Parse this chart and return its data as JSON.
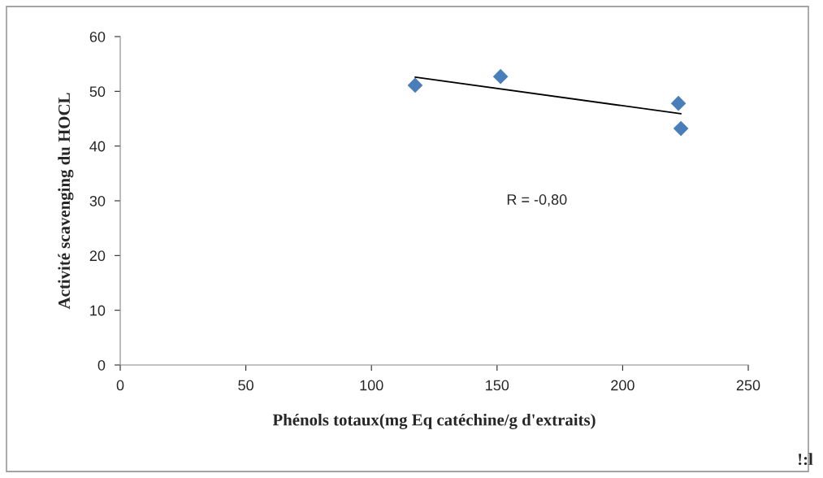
{
  "chart_data": {
    "type": "scatter",
    "xlabel": "Phénols totaux(mg Eq catéchine/g d'extraits)",
    "ylabel": "Activité scavenging du HOCL",
    "xlim": [
      0,
      250
    ],
    "xticks": [
      0,
      50,
      100,
      150,
      200,
      250
    ],
    "ylim": [
      0,
      60
    ],
    "yticks": [
      0,
      10,
      20,
      30,
      40,
      50,
      60
    ],
    "grid": false,
    "legend": false,
    "marker": "diamond",
    "series": [
      {
        "color": "#4a7ebb",
        "x": [
          117.4,
          151.4,
          222.2,
          223.2
        ],
        "values": [
          51.1,
          52.7,
          47.8,
          43.2
        ]
      },
      {
        "type": "line",
        "color": "#000000",
        "x": [
          117.4,
          223.2
        ],
        "values": [
          52.6,
          45.9
        ],
        "marker": "none"
      }
    ],
    "annotations": [
      "R = -0,80",
      "!:l"
    ]
  }
}
